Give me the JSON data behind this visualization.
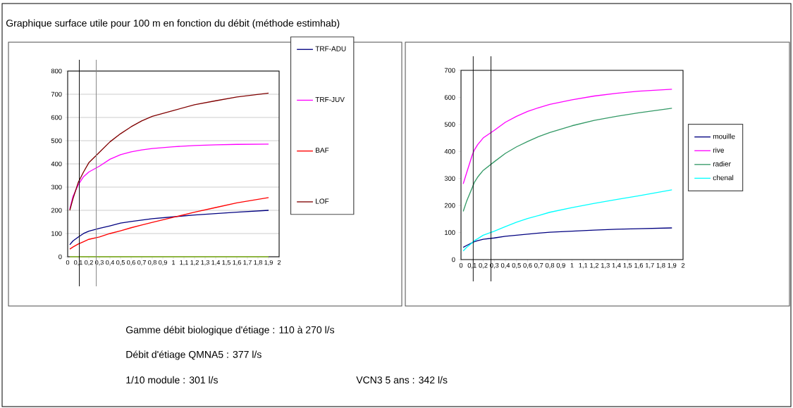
{
  "chart_data": [
    {
      "type": "line",
      "title": "Graphique surface utile pour 100 m en fonction du débit (méthode estimhab)",
      "annotations": [
        "Gamme débit biologique d'étiage : 110 à 270 l/s",
        "Débit d'étiage QMNA5 : 377 l/s",
        "1/10 module : 301 l/s",
        "VCN3 5 ans : 342 l/s"
      ],
      "x": [
        0.02,
        0.05,
        0.1,
        0.15,
        0.2,
        0.3,
        0.4,
        0.5,
        0.6,
        0.7,
        0.8,
        1.0,
        1.2,
        1.4,
        1.6,
        1.9
      ],
      "series": [
        {
          "name": "TRF-ADU",
          "color": "#000080",
          "values": [
            52,
            68,
            85,
            100,
            110,
            122,
            133,
            145,
            152,
            158,
            164,
            172,
            180,
            186,
            192,
            200
          ]
        },
        {
          "name": "TRF-JUV",
          "color": "#ff00ff",
          "values": [
            205,
            260,
            310,
            345,
            365,
            390,
            420,
            440,
            452,
            460,
            466,
            474,
            479,
            482,
            484,
            485
          ]
        },
        {
          "name": "BAF",
          "color": "#ff0000",
          "values": [
            33,
            42,
            55,
            65,
            75,
            85,
            100,
            112,
            125,
            137,
            148,
            170,
            192,
            212,
            232,
            255
          ]
        },
        {
          "name": "LOF",
          "color": "#800000",
          "values": [
            200,
            250,
            320,
            365,
            405,
            450,
            495,
            530,
            560,
            585,
            605,
            630,
            655,
            672,
            688,
            705
          ]
        },
        {
          "color": "#99cc33",
          "values": [
            0,
            0,
            0,
            0,
            0,
            0,
            0,
            0,
            0,
            0,
            0,
            0,
            0,
            0,
            0,
            0
          ]
        }
      ],
      "xlim": [
        0,
        2
      ],
      "ylim": [
        0,
        800
      ],
      "xticks": [
        0,
        {
          "value": 0.1,
          "label": "0,1"
        },
        {
          "value": 0.2,
          "label": "0,2"
        },
        {
          "value": 0.3,
          "label": "0,3"
        },
        {
          "value": 0.4,
          "label": "0,4"
        },
        {
          "value": 0.5,
          "label": "0,5"
        },
        {
          "value": 0.6,
          "label": "0,6"
        },
        {
          "value": 0.7,
          "label": "0,7"
        },
        {
          "value": 0.8,
          "label": "0,8"
        },
        {
          "value": 0.9,
          "label": "0,9"
        },
        1,
        {
          "value": 1.1,
          "label": "1,1"
        },
        {
          "value": 1.2,
          "label": "1,2"
        },
        {
          "value": 1.3,
          "label": "1,3"
        },
        {
          "value": 1.4,
          "label": "1,4"
        },
        {
          "value": 1.5,
          "label": "1,5"
        },
        {
          "value": 1.6,
          "label": "1,6"
        },
        {
          "value": 1.7,
          "label": "1,7"
        },
        {
          "value": 1.8,
          "label": "1,8"
        },
        {
          "value": 1.9,
          "label": "1,9"
        },
        2
      ],
      "yticks": [
        0,
        100,
        200,
        300,
        400,
        500,
        600,
        700,
        800
      ],
      "grid": "y",
      "legend": "right",
      "ref_lines": [
        {
          "axis": "x",
          "value": 0.11,
          "color": "#000000"
        },
        {
          "axis": "x",
          "value": 0.27,
          "color": "#808080"
        }
      ]
    },
    {
      "type": "line",
      "x": [
        0.02,
        0.05,
        0.1,
        0.12,
        0.15,
        0.2,
        0.3,
        0.4,
        0.5,
        0.6,
        0.7,
        0.8,
        1.0,
        1.2,
        1.4,
        1.6,
        1.9
      ],
      "series": [
        {
          "name": "mouille",
          "color": "#000080",
          "values": [
            45,
            52,
            62,
            66,
            70,
            75,
            80,
            86,
            90,
            94,
            98,
            101,
            105,
            109,
            112,
            114,
            117
          ]
        },
        {
          "name": "rive",
          "color": "#ff00ff",
          "values": [
            280,
            320,
            385,
            405,
            425,
            450,
            478,
            508,
            530,
            548,
            562,
            574,
            591,
            605,
            615,
            623,
            630
          ]
        },
        {
          "name": "radier",
          "color": "#339966",
          "values": [
            178,
            215,
            265,
            285,
            305,
            330,
            362,
            393,
            417,
            437,
            455,
            470,
            495,
            515,
            530,
            543,
            560
          ]
        },
        {
          "name": "chenal",
          "color": "#00ffff",
          "values": [
            32,
            45,
            62,
            70,
            77,
            90,
            105,
            122,
            138,
            152,
            163,
            175,
            192,
            208,
            222,
            236,
            258
          ]
        }
      ],
      "xlim": [
        0,
        2
      ],
      "ylim": [
        0,
        700
      ],
      "xticks": [
        0,
        {
          "value": 0.1,
          "label": "0,1"
        },
        {
          "value": 0.2,
          "label": "0,2"
        },
        {
          "value": 0.3,
          "label": "0,3"
        },
        {
          "value": 0.4,
          "label": "0,4"
        },
        {
          "value": 0.5,
          "label": "0,5"
        },
        {
          "value": 0.6,
          "label": "0,6"
        },
        {
          "value": 0.7,
          "label": "0,7"
        },
        {
          "value": 0.8,
          "label": "0,8"
        },
        {
          "value": 0.9,
          "label": "0,9"
        },
        1,
        {
          "value": 1.1,
          "label": "1,1"
        },
        {
          "value": 1.2,
          "label": "1,2"
        },
        {
          "value": 1.3,
          "label": "1,3"
        },
        {
          "value": 1.4,
          "label": "1,4"
        },
        {
          "value": 1.5,
          "label": "1,5"
        },
        {
          "value": 1.6,
          "label": "1,6"
        },
        {
          "value": 1.7,
          "label": "1,7"
        },
        {
          "value": 1.8,
          "label": "1,8"
        },
        {
          "value": 1.9,
          "label": "1,9"
        },
        2
      ],
      "yticks": [
        0,
        100,
        200,
        300,
        400,
        500,
        600,
        700
      ],
      "legend": "right",
      "ref_lines": [
        {
          "axis": "x",
          "value": 0.11,
          "color": "#000000"
        },
        {
          "axis": "x",
          "value": 0.27,
          "color": "#000000"
        }
      ]
    }
  ]
}
